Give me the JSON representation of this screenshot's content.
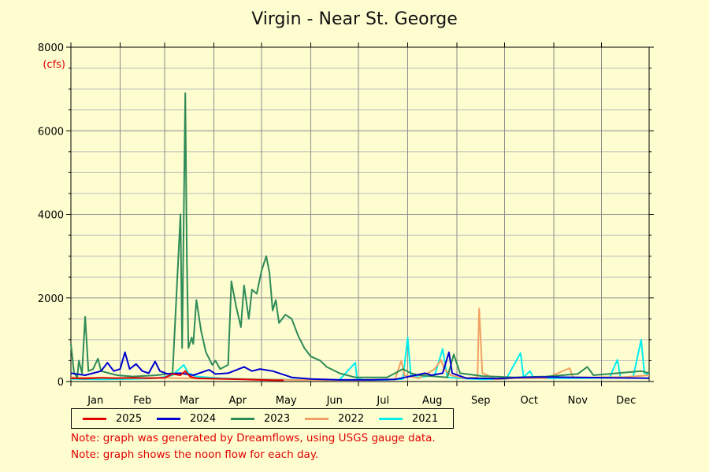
{
  "title": "Virgin - Near St. George",
  "notes": [
    "Note: graph was generated by Dreamflows, using USGS gauge data.",
    "Note: graph shows the noon flow for each day."
  ],
  "chart_data": {
    "type": "line",
    "title": "Virgin - Near St. George",
    "ylabel": "(cfs)",
    "xlabel": "",
    "ylim": [
      0,
      8000
    ],
    "yticks": [
      0,
      2000,
      4000,
      6000,
      8000
    ],
    "xlim": [
      1,
      365
    ],
    "months": [
      {
        "label": "Jan",
        "start": 1
      },
      {
        "label": "Feb",
        "start": 32
      },
      {
        "label": "Mar",
        "start": 60
      },
      {
        "label": "Apr",
        "start": 91
      },
      {
        "label": "May",
        "start": 121
      },
      {
        "label": "Jun",
        "start": 152
      },
      {
        "label": "Jul",
        "start": 182
      },
      {
        "label": "Aug",
        "start": 213
      },
      {
        "label": "Sep",
        "start": 244
      },
      {
        "label": "Oct",
        "start": 274
      },
      {
        "label": "Nov",
        "start": 305
      },
      {
        "label": "Dec",
        "start": 335
      }
    ],
    "grid": true,
    "legend_position": "bottom-left",
    "series": [
      {
        "name": "2021",
        "color": "#00eeee",
        "points": [
          [
            1,
            60
          ],
          [
            20,
            50
          ],
          [
            40,
            60
          ],
          [
            55,
            80
          ],
          [
            65,
            150
          ],
          [
            72,
            400
          ],
          [
            75,
            200
          ],
          [
            80,
            120
          ],
          [
            95,
            80
          ],
          [
            110,
            60
          ],
          [
            130,
            50
          ],
          [
            150,
            40
          ],
          [
            170,
            40
          ],
          [
            180,
            450
          ],
          [
            181,
            80
          ],
          [
            185,
            40
          ],
          [
            200,
            40
          ],
          [
            210,
            60
          ],
          [
            213,
            1050
          ],
          [
            215,
            150
          ],
          [
            220,
            100
          ],
          [
            230,
            150
          ],
          [
            235,
            780
          ],
          [
            238,
            100
          ],
          [
            245,
            80
          ],
          [
            260,
            50
          ],
          [
            275,
            60
          ],
          [
            284,
            680
          ],
          [
            286,
            100
          ],
          [
            290,
            250
          ],
          [
            292,
            100
          ],
          [
            300,
            80
          ],
          [
            320,
            80
          ],
          [
            340,
            90
          ],
          [
            345,
            520
          ],
          [
            347,
            100
          ],
          [
            355,
            120
          ],
          [
            360,
            1000
          ],
          [
            362,
            200
          ],
          [
            365,
            180
          ]
        ]
      },
      {
        "name": "2022",
        "color": "#f0a060",
        "points": [
          [
            1,
            100
          ],
          [
            20,
            90
          ],
          [
            40,
            80
          ],
          [
            60,
            90
          ],
          [
            80,
            70
          ],
          [
            100,
            60
          ],
          [
            120,
            50
          ],
          [
            140,
            40
          ],
          [
            160,
            35
          ],
          [
            180,
            40
          ],
          [
            205,
            50
          ],
          [
            209,
            500
          ],
          [
            211,
            150
          ],
          [
            220,
            80
          ],
          [
            230,
            300
          ],
          [
            234,
            520
          ],
          [
            236,
            300
          ],
          [
            240,
            150
          ],
          [
            248,
            80
          ],
          [
            257,
            100
          ],
          [
            258,
            1750
          ],
          [
            260,
            200
          ],
          [
            265,
            120
          ],
          [
            268,
            50
          ],
          [
            280,
            80
          ],
          [
            300,
            80
          ],
          [
            315,
            320
          ],
          [
            317,
            100
          ],
          [
            330,
            100
          ],
          [
            350,
            110
          ],
          [
            365,
            150
          ]
        ]
      },
      {
        "name": "2023",
        "color": "#2e8b57",
        "points": [
          [
            1,
            900
          ],
          [
            3,
            200
          ],
          [
            5,
            100
          ],
          [
            6,
            500
          ],
          [
            8,
            200
          ],
          [
            10,
            1550
          ],
          [
            12,
            250
          ],
          [
            15,
            300
          ],
          [
            18,
            550
          ],
          [
            20,
            250
          ],
          [
            25,
            200
          ],
          [
            30,
            150
          ],
          [
            40,
            120
          ],
          [
            55,
            150
          ],
          [
            65,
            200
          ],
          [
            70,
            4000
          ],
          [
            71,
            800
          ],
          [
            73,
            6900
          ],
          [
            74,
            2900
          ],
          [
            75,
            800
          ],
          [
            77,
            1050
          ],
          [
            78,
            900
          ],
          [
            80,
            1950
          ],
          [
            83,
            1200
          ],
          [
            86,
            700
          ],
          [
            90,
            400
          ],
          [
            92,
            500
          ],
          [
            95,
            300
          ],
          [
            100,
            400
          ],
          [
            102,
            2400
          ],
          [
            105,
            1800
          ],
          [
            108,
            1300
          ],
          [
            110,
            2300
          ],
          [
            113,
            1500
          ],
          [
            115,
            2200
          ],
          [
            118,
            2100
          ],
          [
            121,
            2650
          ],
          [
            124,
            3000
          ],
          [
            126,
            2600
          ],
          [
            128,
            1700
          ],
          [
            130,
            1950
          ],
          [
            132,
            1400
          ],
          [
            136,
            1600
          ],
          [
            140,
            1500
          ],
          [
            144,
            1100
          ],
          [
            148,
            800
          ],
          [
            152,
            600
          ],
          [
            158,
            500
          ],
          [
            162,
            350
          ],
          [
            170,
            200
          ],
          [
            180,
            100
          ],
          [
            200,
            100
          ],
          [
            210,
            300
          ],
          [
            215,
            200
          ],
          [
            220,
            150
          ],
          [
            238,
            100
          ],
          [
            242,
            650
          ],
          [
            246,
            200
          ],
          [
            260,
            130
          ],
          [
            280,
            100
          ],
          [
            300,
            120
          ],
          [
            320,
            180
          ],
          [
            326,
            350
          ],
          [
            330,
            150
          ],
          [
            345,
            200
          ],
          [
            360,
            250
          ],
          [
            365,
            200
          ]
        ]
      },
      {
        "name": "2024",
        "color": "#0000d0",
        "points": [
          [
            1,
            200
          ],
          [
            10,
            150
          ],
          [
            20,
            250
          ],
          [
            24,
            450
          ],
          [
            28,
            250
          ],
          [
            32,
            300
          ],
          [
            35,
            700
          ],
          [
            38,
            300
          ],
          [
            42,
            420
          ],
          [
            46,
            250
          ],
          [
            50,
            200
          ],
          [
            54,
            480
          ],
          [
            57,
            250
          ],
          [
            62,
            180
          ],
          [
            70,
            200
          ],
          [
            78,
            150
          ],
          [
            88,
            280
          ],
          [
            92,
            180
          ],
          [
            100,
            200
          ],
          [
            110,
            350
          ],
          [
            115,
            250
          ],
          [
            120,
            300
          ],
          [
            128,
            250
          ],
          [
            140,
            100
          ],
          [
            152,
            60
          ],
          [
            170,
            40
          ],
          [
            190,
            40
          ],
          [
            205,
            50
          ],
          [
            218,
            150
          ],
          [
            224,
            200
          ],
          [
            228,
            150
          ],
          [
            235,
            200
          ],
          [
            239,
            700
          ],
          [
            241,
            200
          ],
          [
            250,
            80
          ],
          [
            270,
            70
          ],
          [
            285,
            100
          ],
          [
            300,
            110
          ],
          [
            320,
            100
          ],
          [
            340,
            90
          ],
          [
            365,
            80
          ]
        ]
      },
      {
        "name": "2025",
        "color": "#e00000",
        "points": [
          [
            1,
            80
          ],
          [
            10,
            70
          ],
          [
            20,
            90
          ],
          [
            30,
            80
          ],
          [
            40,
            90
          ],
          [
            50,
            80
          ],
          [
            60,
            90
          ],
          [
            65,
            180
          ],
          [
            70,
            150
          ],
          [
            73,
            250
          ],
          [
            76,
            120
          ],
          [
            80,
            80
          ],
          [
            90,
            70
          ],
          [
            100,
            60
          ],
          [
            110,
            50
          ],
          [
            120,
            40
          ],
          [
            130,
            30
          ],
          [
            135,
            30
          ]
        ]
      }
    ]
  }
}
